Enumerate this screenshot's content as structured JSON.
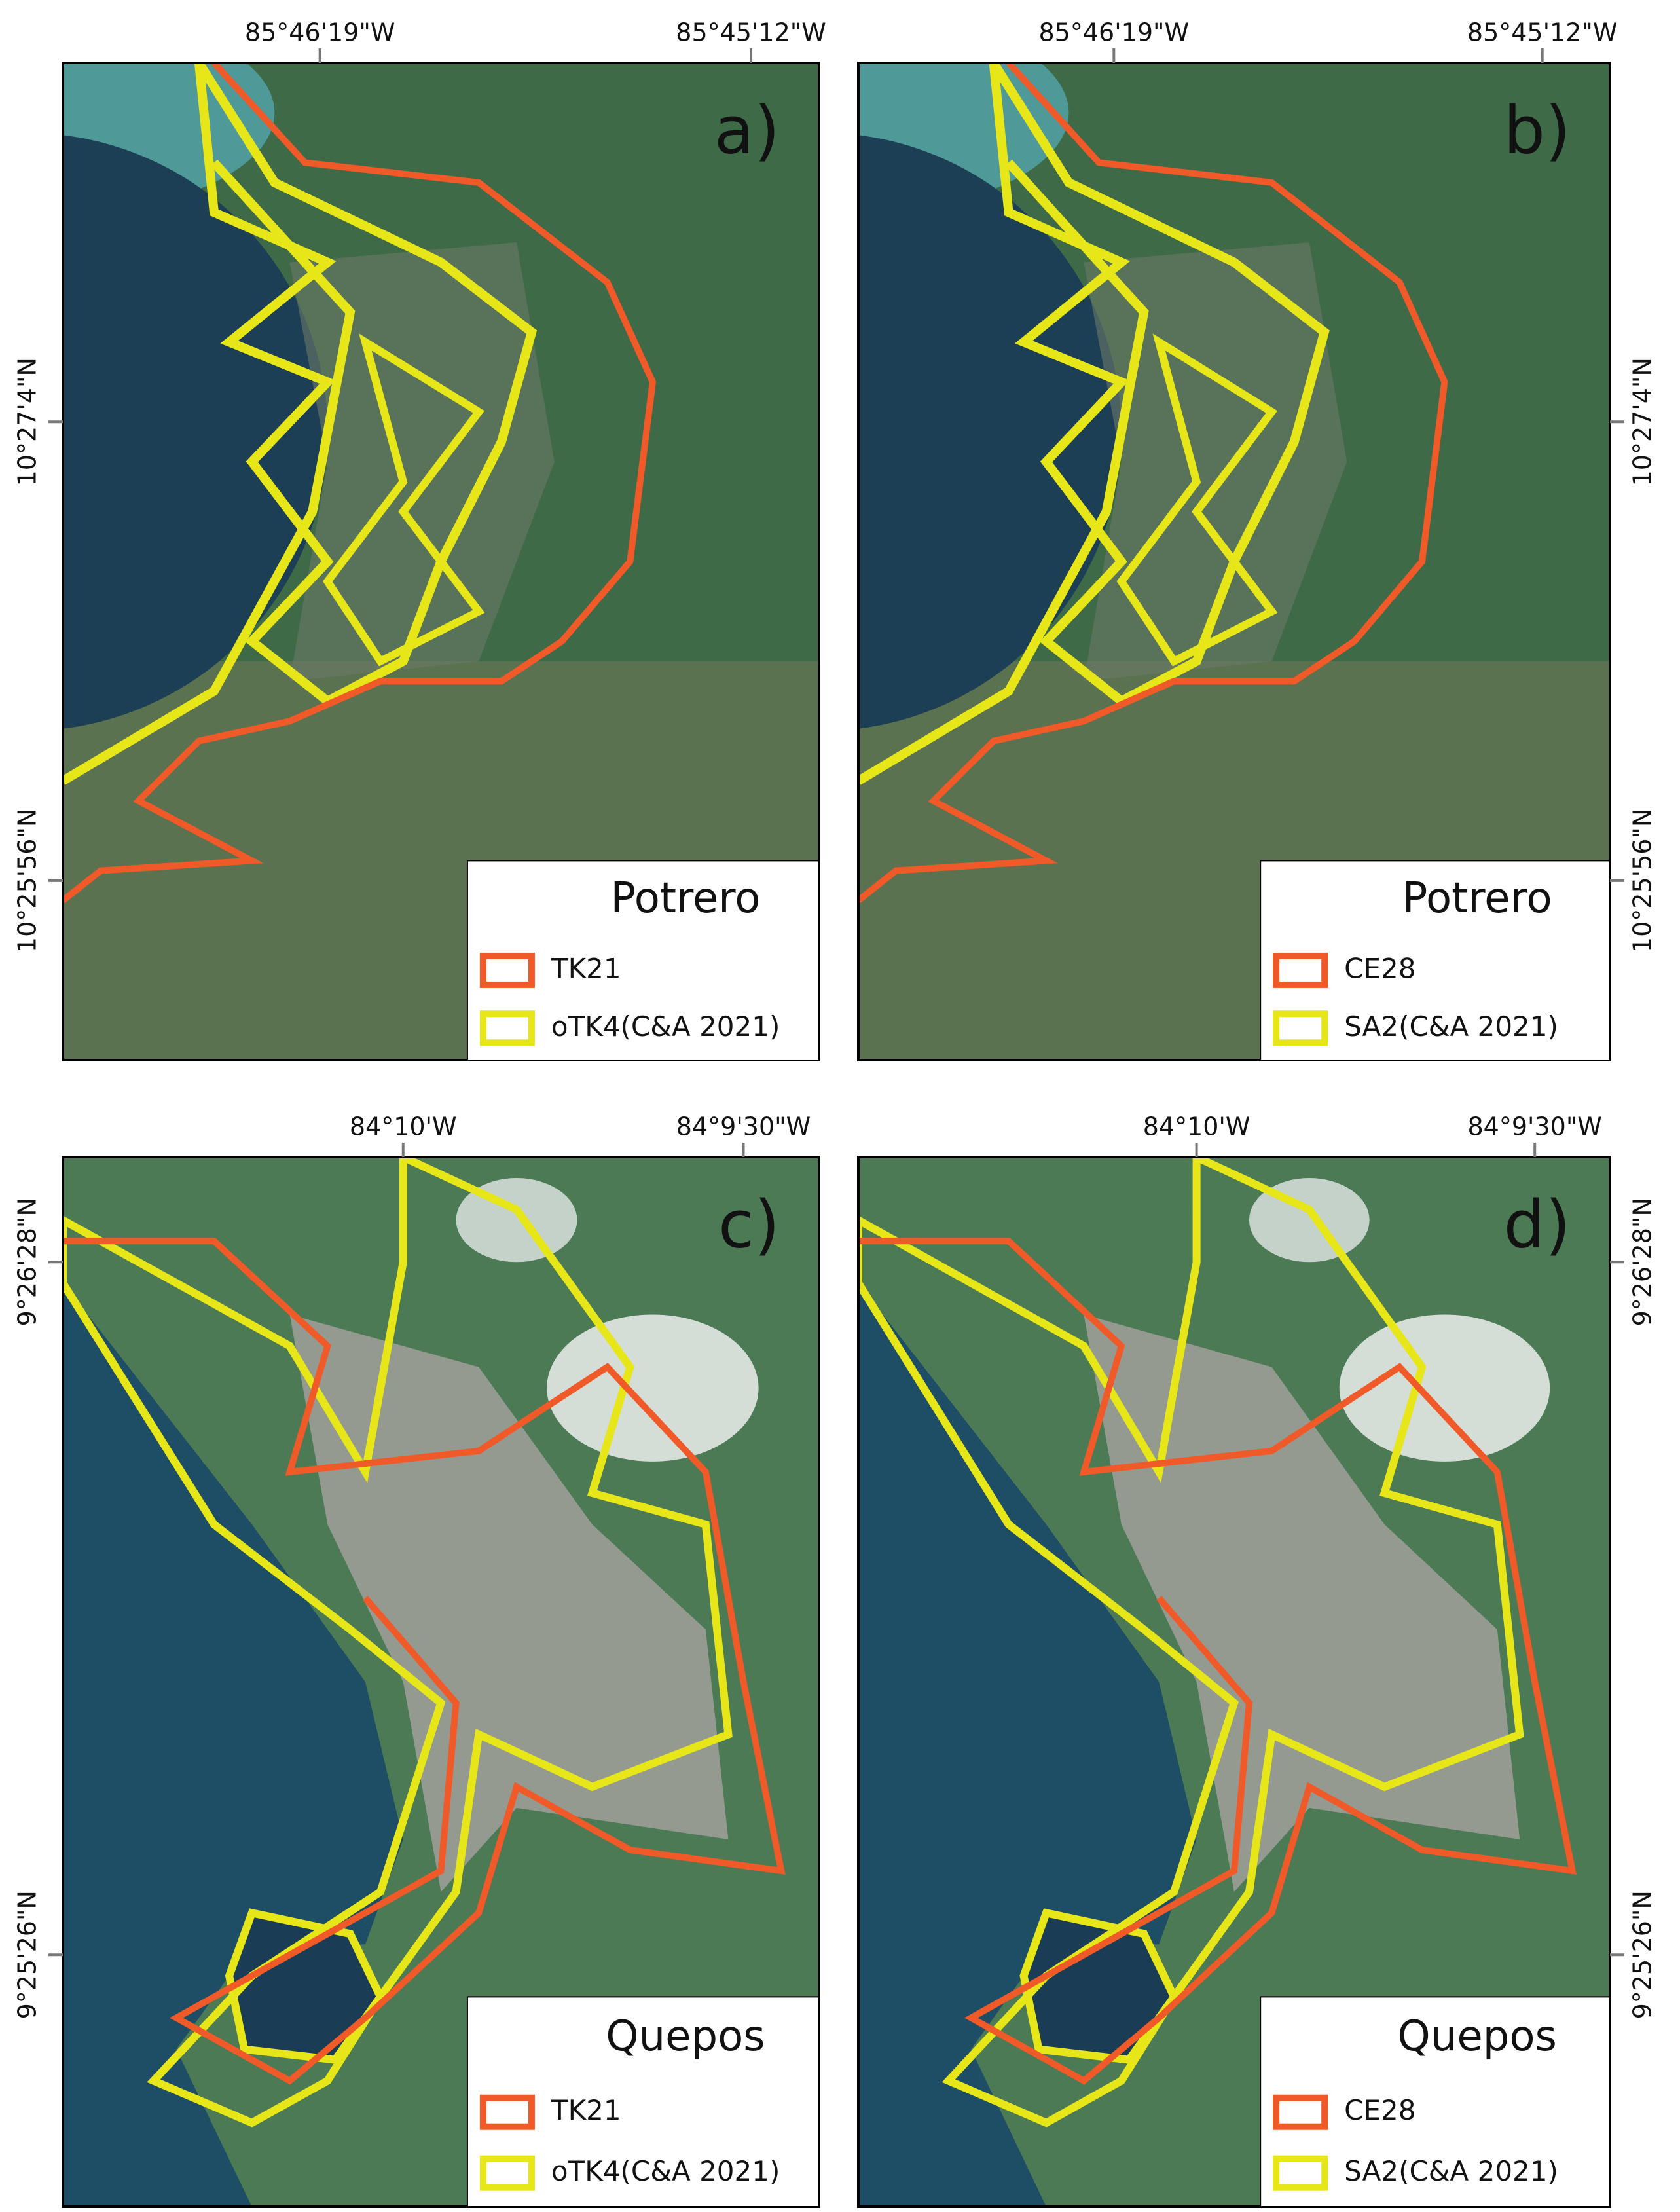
{
  "panels": [
    {
      "letter": "a)",
      "place": "Potrero",
      "kind": "potrero",
      "tick_side": "left",
      "top_labels": [
        "85°46'19\"W",
        "85°45'12\"W"
      ],
      "side_labels": [
        "10°27'4\"N",
        "10°25'56\"N"
      ],
      "legend": [
        {
          "name": "TK21",
          "color": "#f05a28"
        },
        {
          "name": "oTK4(C&A 2021)",
          "color": "#e6e619"
        }
      ]
    },
    {
      "letter": "b)",
      "place": "Potrero",
      "kind": "potrero",
      "tick_side": "right",
      "top_labels": [
        "85°46'19\"W",
        "85°45'12\"W"
      ],
      "side_labels": [
        "10°27'4\"N",
        "10°25'56\"N"
      ],
      "legend": [
        {
          "name": "CE28",
          "color": "#f05a28"
        },
        {
          "name": "SA2(C&A 2021)",
          "color": "#e6e619"
        }
      ]
    },
    {
      "letter": "c)",
      "place": "Quepos",
      "kind": "quepos",
      "tick_side": "left",
      "top_labels": [
        "84°10'W",
        "84°9'30\"W"
      ],
      "side_labels": [
        "9°26'28\"N",
        "9°25'26\"N"
      ],
      "legend": [
        {
          "name": "TK21",
          "color": "#f05a28"
        },
        {
          "name": "oTK4(C&A 2021)",
          "color": "#e6e619"
        }
      ]
    },
    {
      "letter": "d)",
      "place": "Quepos",
      "kind": "quepos",
      "tick_side": "right",
      "top_labels": [
        "84°10'W",
        "84°9'30\"W"
      ],
      "side_labels": [
        "9°26'28\"N",
        "9°25'26\"N"
      ],
      "legend": [
        {
          "name": "CE28",
          "color": "#f05a28"
        },
        {
          "name": "SA2(C&A 2021)",
          "color": "#e6e619"
        }
      ]
    }
  ]
}
